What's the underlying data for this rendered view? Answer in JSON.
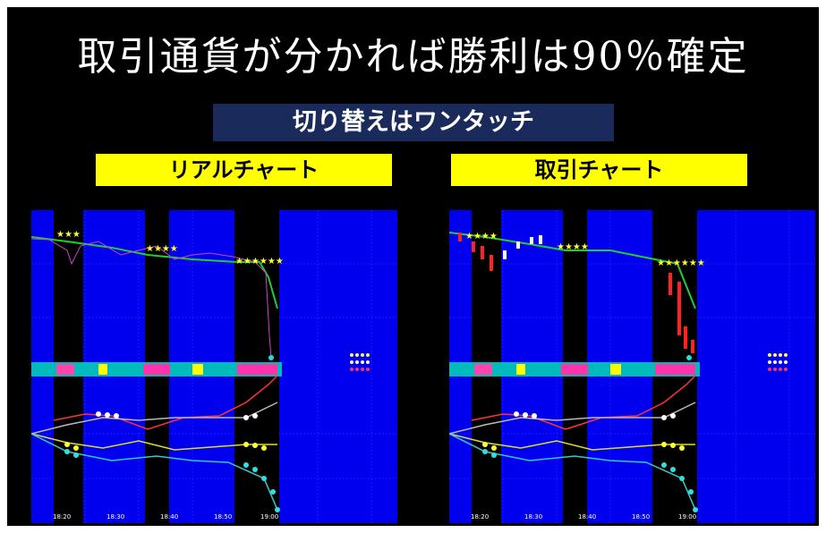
{
  "title": "取引通貨が分かれば勝利は90％確定",
  "subtitle": "切り替えはワンタッチ",
  "panels": [
    {
      "label": "リアルチャート",
      "time_ticks": [
        "18:20",
        "18:30",
        "18:40",
        "18:50",
        "19:00"
      ]
    },
    {
      "label": "取引チャート",
      "time_ticks": [
        "18:20",
        "18:30",
        "18:40",
        "18:50",
        "19:00"
      ]
    }
  ],
  "colors": {
    "slide_bg": "#000000",
    "chart_bg": "#0000ee",
    "highlight": "#ffff00",
    "banner": "#1a2a5a"
  }
}
